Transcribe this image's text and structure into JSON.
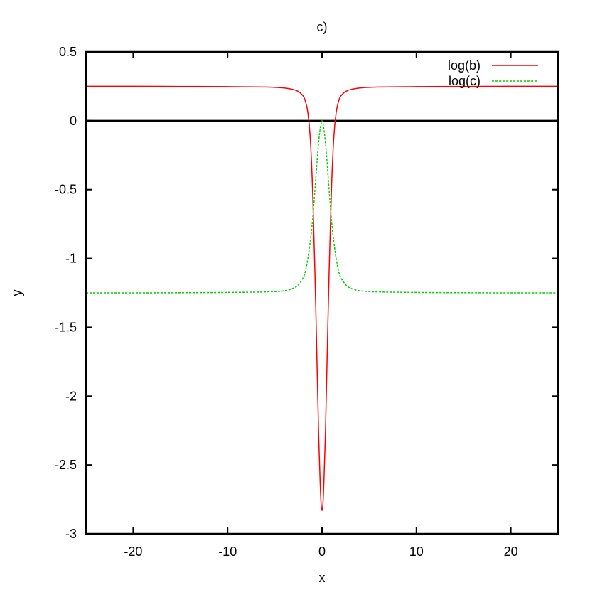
{
  "chart_data": {
    "type": "line",
    "title": "c)",
    "xlabel": "x",
    "ylabel": "y",
    "xlim": [
      -25,
      25
    ],
    "ylim": [
      -3,
      0.5
    ],
    "xticks": [
      -20,
      -10,
      0,
      10,
      20
    ],
    "yticks": [
      0.5,
      0,
      -0.5,
      -1,
      -1.5,
      -2,
      -2.5,
      -3
    ],
    "xtick_labels": [
      "-20",
      "-10",
      "0",
      "10",
      "20"
    ],
    "ytick_labels": [
      "0.5",
      "0",
      "-0.5",
      "-1",
      "-1.5",
      "-2",
      "-2.5",
      "-3"
    ],
    "zero_line": 0,
    "grid": false,
    "legend_position": "top-right",
    "series": [
      {
        "name": "log(b)",
        "color": "#ff0000",
        "dash": "solid",
        "x": [
          -25,
          -20,
          -15,
          -10,
          -6,
          -4,
          -3,
          -2.5,
          -2,
          -1.75,
          -1.5,
          -1.25,
          -1,
          -0.75,
          -0.5,
          -0.35,
          -0.2,
          -0.1,
          0,
          0.1,
          0.2,
          0.35,
          0.5,
          0.75,
          1,
          1.25,
          1.5,
          1.75,
          2,
          2.5,
          3,
          4,
          6,
          10,
          15,
          20,
          25
        ],
        "y": [
          0.25,
          0.25,
          0.249,
          0.248,
          0.245,
          0.238,
          0.226,
          0.212,
          0.18,
          0.14,
          0.06,
          -0.12,
          -0.5,
          -1.1,
          -1.85,
          -2.3,
          -2.62,
          -2.78,
          -2.83,
          -2.78,
          -2.62,
          -2.3,
          -1.85,
          -1.1,
          -0.5,
          -0.12,
          0.06,
          0.14,
          0.18,
          0.212,
          0.226,
          0.238,
          0.245,
          0.248,
          0.249,
          0.25,
          0.25
        ]
      },
      {
        "name": "log(c)",
        "color": "#00d000",
        "dash": "dashed",
        "x": [
          -25,
          -20,
          -15,
          -10,
          -6,
          -4,
          -3,
          -2.5,
          -2,
          -1.75,
          -1.5,
          -1.25,
          -1,
          -0.75,
          -0.5,
          -0.35,
          -0.2,
          -0.1,
          0,
          0.1,
          0.2,
          0.35,
          0.5,
          0.75,
          1,
          1.25,
          1.5,
          1.75,
          2,
          2.5,
          3,
          4,
          6,
          10,
          15,
          20,
          25
        ],
        "y": [
          -1.25,
          -1.25,
          -1.249,
          -1.247,
          -1.243,
          -1.235,
          -1.215,
          -1.19,
          -1.14,
          -1.09,
          -1.0,
          -0.88,
          -0.72,
          -0.5,
          -0.27,
          -0.15,
          -0.06,
          -0.02,
          0.0,
          -0.02,
          -0.06,
          -0.15,
          -0.27,
          -0.5,
          -0.72,
          -0.88,
          -1.0,
          -1.09,
          -1.14,
          -1.19,
          -1.215,
          -1.235,
          -1.243,
          -1.247,
          -1.249,
          -1.25,
          -1.25
        ]
      }
    ]
  }
}
